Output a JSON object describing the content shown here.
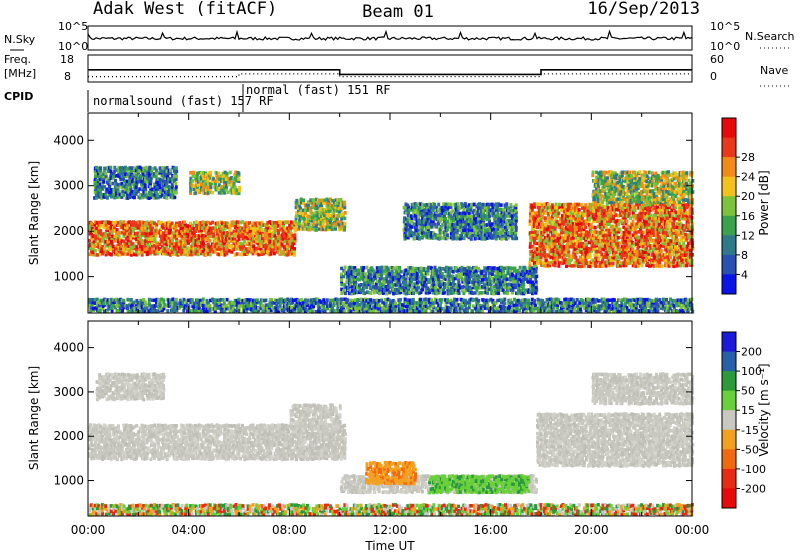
{
  "header": {
    "station": "Adak West (fitACF)",
    "beam": "Beam 01",
    "date": "16/Sep/2013"
  },
  "chart_data": [
    {
      "type": "line",
      "name": "noise-panel",
      "left_label": "N.Sky",
      "right_label": "N.Search",
      "y_ticks_left": [
        "10^5",
        "10^0"
      ],
      "y_ticks_right": [
        "10^5",
        "10^0"
      ]
    },
    {
      "type": "line",
      "name": "frequency-panel",
      "left_label": "Freq.",
      "left_unit": "[MHz]",
      "right_label": "Nave",
      "cpid_label": "CPID",
      "y_ticks_left": [
        "18",
        "8"
      ],
      "y_ticks_right": [
        "60",
        "0"
      ],
      "freq_series": {
        "x": [
          0.0,
          10.0,
          10.0,
          18.0,
          18.0,
          24.0
        ],
        "y": [
          12.5,
          12.5,
          10.8,
          10.8,
          12.5,
          12.5
        ]
      },
      "nave_series": {
        "x": [
          0.0,
          6.0,
          6.0,
          10.0,
          10.0,
          18.0,
          18.0,
          24.0
        ],
        "y": [
          12,
          12,
          18,
          18,
          12,
          12,
          18,
          18
        ]
      },
      "cpid_segments": [
        {
          "label": "normalsound (fast) 157 RF",
          "start": 0,
          "end": 6
        },
        {
          "label": "normal (fast) 151 RF",
          "start": 6,
          "end": 24
        }
      ]
    },
    {
      "type": "heatmap",
      "name": "power-panel",
      "ylabel": "Slant Range [km]",
      "ylim": [
        200,
        4600
      ],
      "yticks": [
        1000,
        2000,
        3000,
        4000
      ],
      "xlim": [
        0,
        24
      ],
      "colorbar": {
        "label": "Power [dB]",
        "ticks": [
          "4",
          "8",
          "12",
          "16",
          "20",
          "24",
          "28"
        ],
        "colors": [
          "#0a14e6",
          "#2a50b0",
          "#2f7a8a",
          "#3aa24c",
          "#7cc23a",
          "#f2c21a",
          "#f28a1a",
          "#e83a1a",
          "#e60a0a"
        ]
      },
      "echo_regions": [
        {
          "x0": 0.0,
          "x1": 8.2,
          "y0": 1450,
          "y1": 2200,
          "level": "high"
        },
        {
          "x0": 8.2,
          "x1": 10.2,
          "y0": 2000,
          "y1": 2700,
          "level": "mid"
        },
        {
          "x0": 0.2,
          "x1": 3.5,
          "y0": 2700,
          "y1": 3400,
          "level": "low"
        },
        {
          "x0": 4.0,
          "x1": 6.0,
          "y0": 2800,
          "y1": 3300,
          "level": "mid"
        },
        {
          "x0": 10.0,
          "x1": 17.8,
          "y0": 600,
          "y1": 1200,
          "level": "low"
        },
        {
          "x0": 12.5,
          "x1": 17.0,
          "y0": 1800,
          "y1": 2600,
          "level": "low"
        },
        {
          "x0": 17.5,
          "x1": 24.0,
          "y0": 1200,
          "y1": 2600,
          "level": "high"
        },
        {
          "x0": 20.0,
          "x1": 24.0,
          "y0": 2600,
          "y1": 3300,
          "level": "mid"
        },
        {
          "x0": 0.0,
          "x1": 24.0,
          "y0": 200,
          "y1": 500,
          "level": "low"
        }
      ]
    },
    {
      "type": "heatmap",
      "name": "velocity-panel",
      "ylabel": "Slant Range [km]",
      "xlabel": "Time UT",
      "ylim": [
        200,
        4600
      ],
      "yticks": [
        1000,
        2000,
        3000,
        4000
      ],
      "xlim": [
        0,
        24
      ],
      "xticks": [
        "00:00",
        "04:00",
        "08:00",
        "12:00",
        "16:00",
        "20:00",
        "00:00"
      ],
      "colorbar": {
        "label": "Velocity [m s⁻¹]",
        "ticks": [
          "200",
          "100",
          "50",
          "15",
          "-15",
          "-50",
          "-100",
          "-200"
        ],
        "colors": [
          "#1a1ad8",
          "#2860a8",
          "#2a9a3a",
          "#6ad03a",
          "#c8c8c0",
          "#f2a020",
          "#f26a10",
          "#e82a10",
          "#e60a0a"
        ]
      },
      "echo_regions": [
        {
          "x0": 0.0,
          "x1": 10.2,
          "y0": 1450,
          "y1": 2250,
          "level": "gray"
        },
        {
          "x0": 8.0,
          "x1": 10.0,
          "y0": 2200,
          "y1": 2700,
          "level": "gray"
        },
        {
          "x0": 0.3,
          "x1": 3.0,
          "y0": 2800,
          "y1": 3400,
          "level": "gray"
        },
        {
          "x0": 10.0,
          "x1": 17.8,
          "y0": 700,
          "y1": 1100,
          "level": "gray"
        },
        {
          "x0": 17.8,
          "x1": 24.0,
          "y0": 1300,
          "y1": 2500,
          "level": "gray"
        },
        {
          "x0": 20.0,
          "x1": 24.0,
          "y0": 2700,
          "y1": 3400,
          "level": "gray"
        },
        {
          "x0": 13.5,
          "x1": 17.5,
          "y0": 700,
          "y1": 1100,
          "level": "green"
        },
        {
          "x0": 11.0,
          "x1": 13.0,
          "y0": 900,
          "y1": 1400,
          "level": "orange"
        },
        {
          "x0": 0.0,
          "x1": 24.0,
          "y0": 200,
          "y1": 450,
          "level": "mixed"
        }
      ]
    }
  ]
}
